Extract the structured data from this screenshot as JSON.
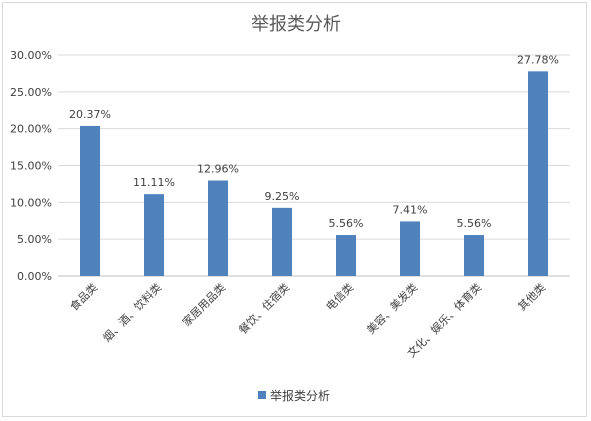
{
  "chart_data": {
    "type": "bar",
    "title": "举报类分析",
    "categories": [
      "食品类",
      "烟、酒、饮料类",
      "家居用品类",
      "餐饮、住宿类",
      "电信类",
      "美容、美发类",
      "文化、娱乐、体育类",
      "其他类"
    ],
    "series": [
      {
        "name": "举报类分析",
        "values": [
          20.37,
          11.11,
          12.96,
          9.25,
          5.56,
          7.41,
          5.56,
          27.78
        ],
        "color": "#4f81bd"
      }
    ],
    "data_labels": [
      "20.37%",
      "11.11%",
      "12.96%",
      "9.25%",
      "5.56%",
      "7.41%",
      "5.56%",
      "27.78%"
    ],
    "y_ticks": [
      "0.00%",
      "5.00%",
      "10.00%",
      "15.00%",
      "20.00%",
      "25.00%",
      "30.00%"
    ],
    "ylim": [
      0,
      30
    ],
    "grid": true,
    "legend": "bottom",
    "xlabel": "",
    "ylabel": ""
  }
}
